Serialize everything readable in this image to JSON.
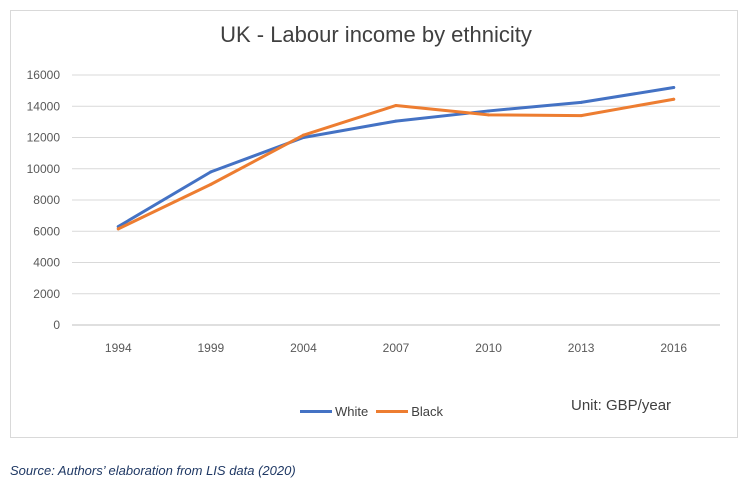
{
  "chart_data": {
    "type": "line",
    "title": "UK - Labour income by ethnicity",
    "categories": [
      "1994",
      "1999",
      "2004",
      "2007",
      "2010",
      "2013",
      "2016"
    ],
    "series": [
      {
        "name": "White",
        "color": "#4472c4",
        "values": [
          6300,
          9800,
          12000,
          13050,
          13700,
          14250,
          15200
        ]
      },
      {
        "name": "Black",
        "color": "#ed7d31",
        "values": [
          6150,
          9000,
          12150,
          14050,
          13450,
          13400,
          14450
        ]
      }
    ],
    "y_ticks": [
      "0",
      "2000",
      "4000",
      "6000",
      "8000",
      "10000",
      "12000",
      "14000",
      "16000"
    ],
    "ylim": [
      0,
      16000
    ],
    "grid": true,
    "legend_position": "bottom"
  },
  "unit_label": "Unit: GBP/year",
  "source": "Source: Authors’ elaboration from LIS data (2020)"
}
